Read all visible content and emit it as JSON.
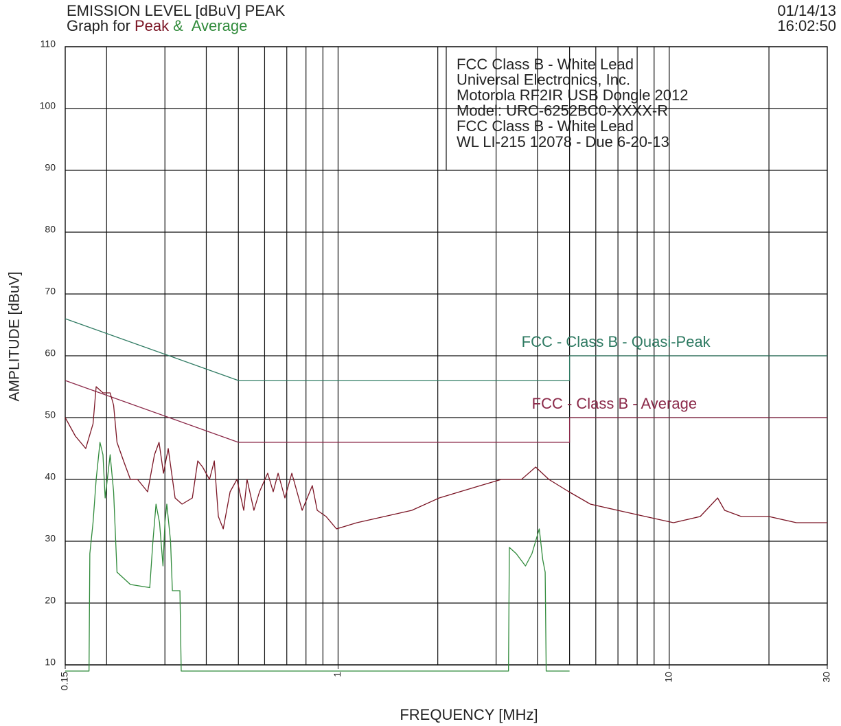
{
  "chart_data": {
    "type": "line",
    "title": "EMISSION LEVEL [dBuV] PEAK",
    "legend_prefix": "Graph for",
    "legend_joiner": "&",
    "date": "01/14/13",
    "time": "16:02:50",
    "info": [
      "FCC Class B - White Lead",
      "Universal Electronics, Inc.",
      "Motorola RF2IR USB Dongle 2012",
      "Model: URC-6252BC0-XXXX-R",
      "FCC Class B - White Lead",
      "WL LI-215 12078 - Due 6-20-13"
    ],
    "x_label": "FREQUENCY [MHz]",
    "y_label": "AMPLITUDE [dBuV]",
    "log_x": true,
    "grid": true,
    "xlim": [
      0.15,
      30
    ],
    "xticks": [
      0.15,
      1,
      10,
      30
    ],
    "xgrid": [
      0.2,
      0.3,
      0.4,
      0.5,
      0.6,
      0.7,
      0.8,
      0.9,
      1,
      2,
      3,
      4,
      5,
      6,
      7,
      8,
      9,
      10,
      20
    ],
    "ylim": [
      10,
      110
    ],
    "yticks": [
      10,
      20,
      30,
      40,
      50,
      60,
      70,
      80,
      90,
      100,
      110
    ],
    "series": [
      {
        "name": "Peak",
        "color": "#7a1424",
        "x": [
          0.15,
          0.161,
          0.173,
          0.182,
          0.186,
          0.195,
          0.205,
          0.21,
          0.215,
          0.225,
          0.236,
          0.248,
          0.266,
          0.279,
          0.288,
          0.297,
          0.307,
          0.322,
          0.338,
          0.363,
          0.377,
          0.39,
          0.409,
          0.423,
          0.435,
          0.45,
          0.472,
          0.495,
          0.519,
          0.531,
          0.557,
          0.579,
          0.613,
          0.637,
          0.659,
          0.691,
          0.725,
          0.779,
          0.836,
          0.865,
          0.92,
          0.989,
          1.14,
          1.38,
          1.67,
          2.02,
          2.33,
          2.69,
          3.11,
          3.58,
          3.95,
          4.33,
          4.98,
          5.78,
          6.99,
          8.47,
          10.3,
          12.4,
          14.0,
          14.7,
          16.5,
          20.0,
          24.2,
          30
        ],
        "values": [
          50,
          47,
          45,
          49,
          55,
          54,
          54,
          52,
          46,
          43,
          40,
          40,
          38,
          44,
          46,
          41,
          45,
          37,
          36,
          37,
          43,
          42,
          40,
          43,
          34,
          32,
          38,
          40,
          35,
          40,
          35,
          38,
          41,
          38,
          41,
          37,
          41,
          35,
          39,
          35,
          34,
          32,
          33,
          34,
          35,
          37,
          38,
          39,
          40,
          40,
          42,
          40,
          38,
          36,
          35,
          34,
          33,
          34,
          37,
          35,
          34,
          34,
          33,
          33
        ]
      },
      {
        "name": "Average",
        "color": "#2f8a3a",
        "x": [
          0.15,
          0.177,
          0.178,
          0.182,
          0.186,
          0.191,
          0.195,
          0.198,
          0.202,
          0.205,
          0.21,
          0.215,
          0.236,
          0.27,
          0.276,
          0.282,
          0.289,
          0.296,
          0.3,
          0.304,
          0.312,
          0.316,
          0.333,
          0.336,
          3.27,
          3.29,
          3.45,
          3.68,
          3.85,
          4.05,
          4.15,
          4.22,
          4.25,
          5.0
        ],
        "values": [
          9,
          9,
          28,
          33,
          40,
          46,
          44,
          37,
          41,
          44,
          38,
          25,
          23,
          22.5,
          30,
          36,
          33,
          26,
          33,
          36,
          30,
          22,
          22,
          9,
          9,
          29,
          28,
          26,
          28,
          32,
          27,
          25,
          9,
          9
        ]
      }
    ],
    "limits": [
      {
        "name": "FCC - Class B - Quasi-Peak",
        "color": "#2e7a62",
        "x": [
          0.15,
          0.5,
          5,
          5,
          30
        ],
        "values": [
          66,
          56,
          56,
          60,
          60
        ]
      },
      {
        "name": "FCC - Class B - Average",
        "color": "#8a2848",
        "x": [
          0.15,
          0.5,
          5,
          5,
          30
        ],
        "values": [
          56,
          46,
          46,
          50,
          50
        ]
      }
    ]
  }
}
